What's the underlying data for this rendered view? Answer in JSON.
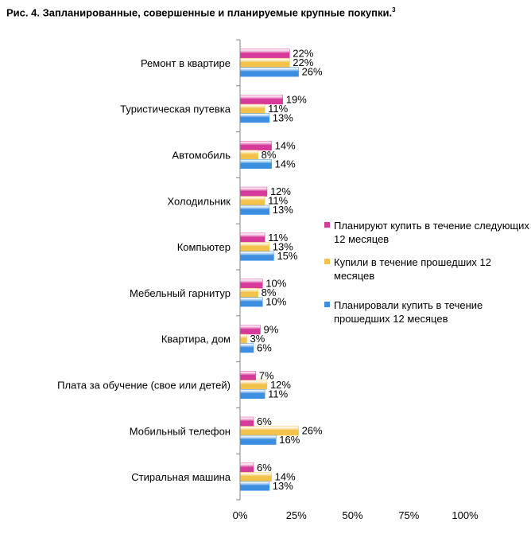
{
  "title": "Рис. 4. Запланированные, совершенные и планируемые крупные покупки.",
  "title_sup": "3",
  "chart_data": {
    "type": "bar",
    "orientation": "horizontal",
    "title": "Рис. 4. Запланированные, совершенные и планируемые крупные покупки.",
    "categories": [
      "Ремонт в квартире",
      "Туристическая путевка",
      "Автомобиль",
      "Холодильник",
      "Компьютер",
      "Мебельный гарнитур",
      "Квартира, дом",
      "Плата за обучение (свое или детей)",
      "Мобильный телефон",
      "Стиральная машина"
    ],
    "series": [
      {
        "name": "Планируют купить в течение следующих 12 месяцев",
        "color": "#d63a9a",
        "values": [
          22,
          19,
          14,
          12,
          11,
          10,
          9,
          7,
          6,
          6
        ],
        "labels": [
          "22%",
          "19%",
          "14%",
          "12%",
          "11%",
          "10%",
          "9%",
          "7%",
          "6%",
          "6%"
        ]
      },
      {
        "name": "Купили в течение прошедших 12 месяцев",
        "color": "#f2c24a",
        "values": [
          22,
          11,
          8,
          11,
          13,
          8,
          3,
          12,
          26,
          14
        ],
        "labels": [
          "22%",
          "11%",
          "8%",
          "11%",
          "13%",
          "8%",
          "3%",
          "12%",
          "26%",
          "14%"
        ]
      },
      {
        "name": "Планировали купить в течение прошедших 12 месяцев",
        "color": "#3c8ee0",
        "values": [
          26,
          13,
          14,
          13,
          15,
          10,
          6,
          11,
          16,
          13
        ],
        "labels": [
          "26%",
          "13%",
          "14%",
          "13%",
          "15%",
          "10%",
          "6%",
          "11%",
          "16%",
          "13%"
        ]
      }
    ],
    "xlim": [
      0,
      100
    ],
    "xticks": [
      "0%",
      "25%",
      "50%",
      "75%",
      "100%"
    ],
    "grid": false,
    "legend_position": "right"
  },
  "legend": [
    {
      "label": "Планируют купить в течение следующих 12 месяцев",
      "color": "#d63a9a"
    },
    {
      "label": "Купили в течение прошедших 12 месяцев",
      "color": "#f2c24a"
    },
    {
      "label": "Планировали купить в течение прошедших 12 месяцев",
      "color": "#3c8ee0"
    }
  ]
}
